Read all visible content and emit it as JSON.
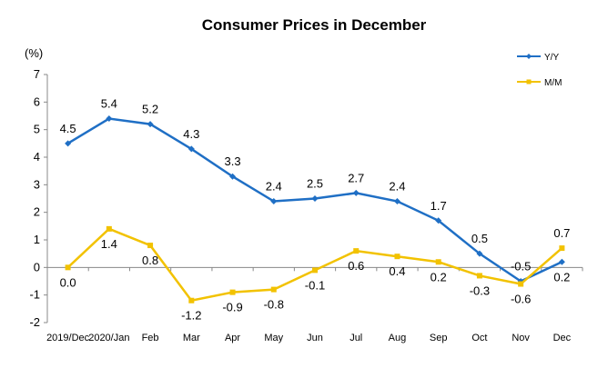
{
  "chart_data": {
    "type": "line",
    "title": "Consumer Prices in December",
    "ylabel": "(%)",
    "xlabel": "",
    "ylim": [
      -2,
      7
    ],
    "yticks": [
      -2,
      -1,
      0,
      1,
      2,
      3,
      4,
      5,
      6,
      7
    ],
    "categories": [
      "2019/Dec",
      "2020/Jan",
      "Feb",
      "Mar",
      "Apr",
      "May",
      "Jun",
      "Jul",
      "Aug",
      "Sep",
      "Oct",
      "Nov",
      "Dec"
    ],
    "legend_position": "top-right",
    "grid": false,
    "series": [
      {
        "name": "Y/Y",
        "color": "#1f6fc5",
        "marker": "diamond",
        "values": [
          4.5,
          5.4,
          5.2,
          4.3,
          3.3,
          2.4,
          2.5,
          2.7,
          2.4,
          1.7,
          0.5,
          -0.5,
          0.2
        ],
        "labels": [
          "4.5",
          "5.4",
          "5.2",
          "4.3",
          "3.3",
          "2.4",
          "2.5",
          "2.7",
          "2.4",
          "1.7",
          "0.5",
          "-0.5",
          "0.2"
        ],
        "label_side": [
          "above",
          "above",
          "above",
          "above",
          "above",
          "above",
          "above",
          "above",
          "above",
          "above",
          "above",
          "above",
          "below"
        ]
      },
      {
        "name": "M/M",
        "color": "#f2c200",
        "marker": "square",
        "values": [
          0.0,
          1.4,
          0.8,
          -1.2,
          -0.9,
          -0.8,
          -0.1,
          0.6,
          0.4,
          0.2,
          -0.3,
          -0.6,
          0.7
        ],
        "labels": [
          "0.0",
          "1.4",
          "0.8",
          "-1.2",
          "-0.9",
          "-0.8",
          "-0.1",
          "0.6",
          "0.4",
          "0.2",
          "-0.3",
          "-0.6",
          "0.7"
        ],
        "label_side": [
          "below",
          "below",
          "below",
          "below",
          "below",
          "below",
          "below",
          "below",
          "below",
          "below",
          "below",
          "below",
          "above"
        ]
      }
    ]
  }
}
